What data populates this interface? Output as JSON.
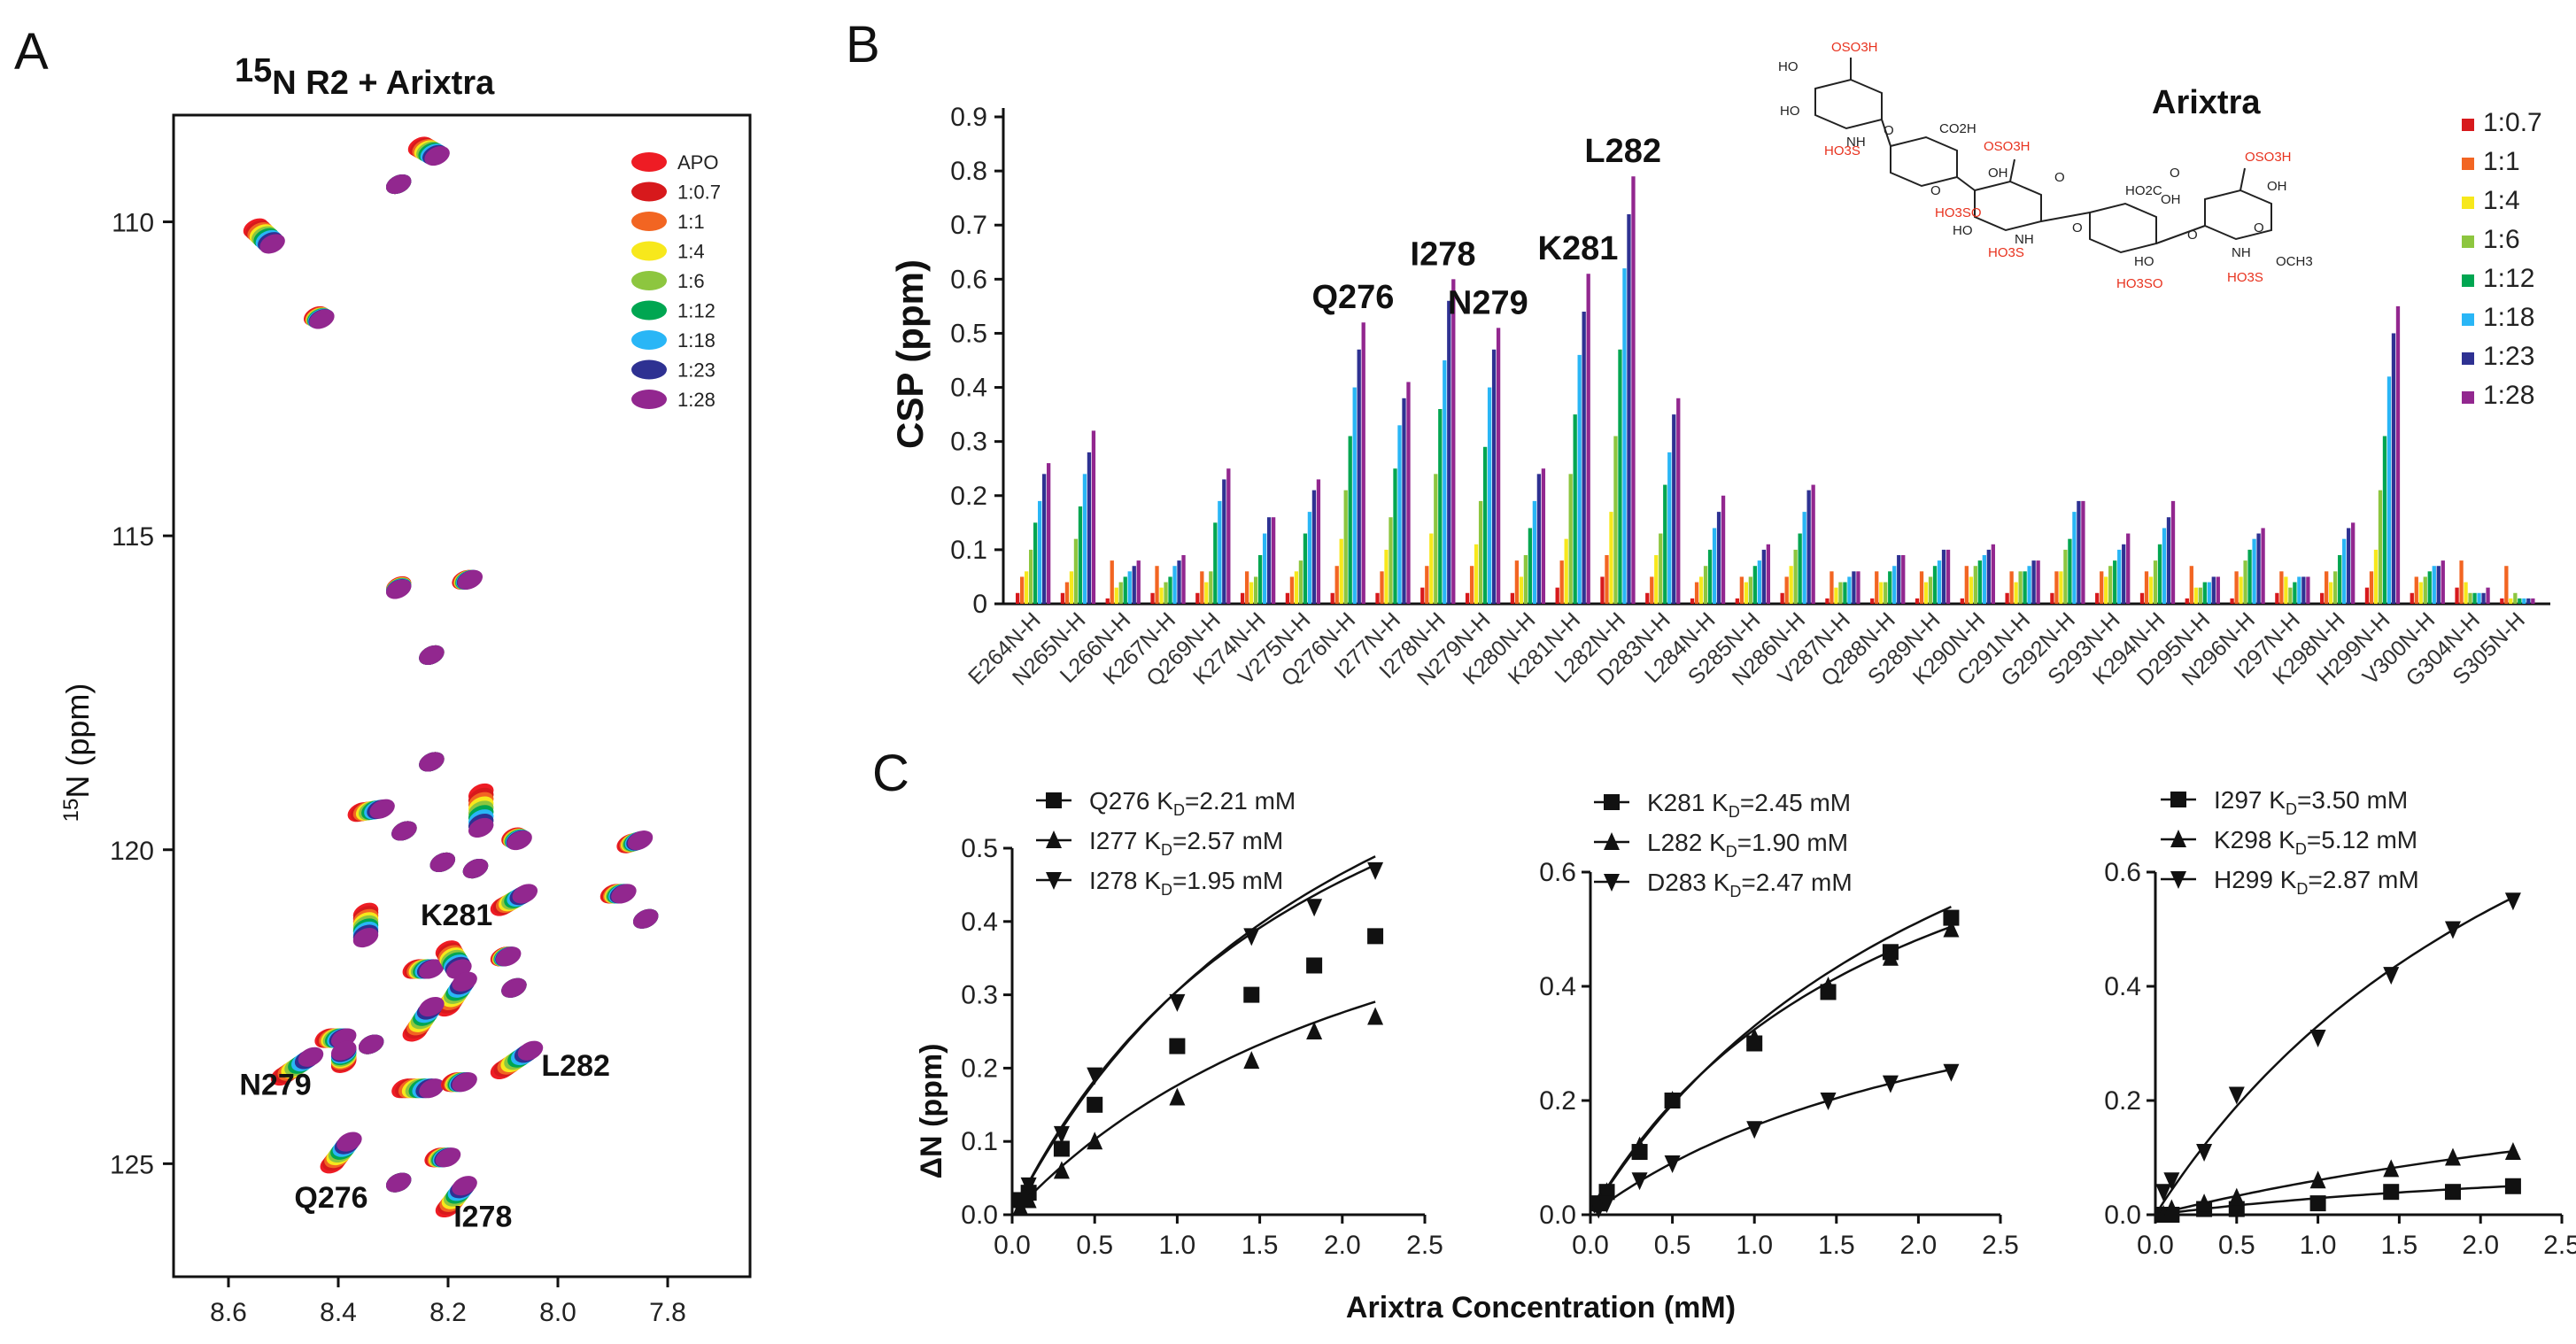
{
  "panels": {
    "A": "A",
    "B": "B",
    "C": "C"
  },
  "colors": {
    "apo": "#ee1c24",
    "r0_7": "#d7191c",
    "r1": "#f26522",
    "r4": "#f7e81c",
    "r6": "#8dc63f",
    "r12": "#00a651",
    "r18": "#29b6f6",
    "r23": "#2e3192",
    "r28": "#92278f"
  },
  "chart_data": [
    {
      "type": "scatter",
      "id": "A",
      "title": "15N R2 + Arixtra",
      "title_sup": "15",
      "title_rest": "N R2 + Arixtra",
      "xlabel": "",
      "ylabel": "15N (ppm)",
      "ylabel_sup": "15",
      "ylabel_rest": "N (ppm)",
      "xlim": [
        8.7,
        7.65
      ],
      "ylim": [
        108.3,
        126.8
      ],
      "xticks": [
        "8.6",
        "8.4",
        "8.2",
        "8.0",
        "7.8"
      ],
      "yticks": [
        "110",
        "115",
        "120",
        "125"
      ],
      "legend": [
        "APO",
        "1:0.7",
        "1:1",
        "1:4",
        "1:6",
        "1:12",
        "1:18",
        "1:23",
        "1:28"
      ],
      "annotations": [
        {
          "label": "K281",
          "x": 8.25,
          "y": 121.2
        },
        {
          "label": "N279",
          "x": 8.58,
          "y": 123.9
        },
        {
          "label": "L282",
          "x": 8.03,
          "y": 123.6
        },
        {
          "label": "Q276",
          "x": 8.48,
          "y": 125.7
        },
        {
          "label": "I278",
          "x": 8.19,
          "y": 126.0
        }
      ],
      "peaks": [
        {
          "x": 8.25,
          "y": 108.8,
          "dx": -0.03,
          "dy": 0.15
        },
        {
          "x": 8.55,
          "y": 110.1,
          "dx": -0.03,
          "dy": 0.25
        },
        {
          "x": 8.29,
          "y": 109.4,
          "dx": 0,
          "dy": 0
        },
        {
          "x": 8.44,
          "y": 111.5,
          "dx": -0.01,
          "dy": 0.05
        },
        {
          "x": 8.29,
          "y": 115.8,
          "dx": 0,
          "dy": 0.05
        },
        {
          "x": 8.17,
          "y": 115.7,
          "dx": -0.01,
          "dy": 0
        },
        {
          "x": 8.23,
          "y": 116.9,
          "dx": 0,
          "dy": 0
        },
        {
          "x": 8.23,
          "y": 118.6,
          "dx": 0,
          "dy": 0
        },
        {
          "x": 8.36,
          "y": 119.4,
          "dx": -0.04,
          "dy": -0.05
        },
        {
          "x": 8.14,
          "y": 119.1,
          "dx": 0,
          "dy": 0.55
        },
        {
          "x": 8.28,
          "y": 119.7,
          "dx": 0,
          "dy": 0
        },
        {
          "x": 8.08,
          "y": 119.8,
          "dx": -0.01,
          "dy": 0.05
        },
        {
          "x": 7.87,
          "y": 119.9,
          "dx": -0.02,
          "dy": -0.05
        },
        {
          "x": 8.21,
          "y": 120.2,
          "dx": 0,
          "dy": 0
        },
        {
          "x": 8.15,
          "y": 120.3,
          "dx": 0,
          "dy": 0
        },
        {
          "x": 8.35,
          "y": 121.0,
          "dx": 0,
          "dy": 0.4
        },
        {
          "x": 8.1,
          "y": 120.9,
          "dx": -0.04,
          "dy": -0.2
        },
        {
          "x": 7.9,
          "y": 120.7,
          "dx": -0.02,
          "dy": 0
        },
        {
          "x": 7.84,
          "y": 121.1,
          "dx": 0,
          "dy": 0
        },
        {
          "x": 8.26,
          "y": 121.9,
          "dx": -0.03,
          "dy": 0
        },
        {
          "x": 8.2,
          "y": 121.6,
          "dx": -0.02,
          "dy": 0.3
        },
        {
          "x": 8.1,
          "y": 121.7,
          "dx": -0.01,
          "dy": 0
        },
        {
          "x": 8.2,
          "y": 122.5,
          "dx": -0.03,
          "dy": -0.4
        },
        {
          "x": 8.08,
          "y": 122.2,
          "dx": 0,
          "dy": 0
        },
        {
          "x": 8.26,
          "y": 122.9,
          "dx": -0.03,
          "dy": -0.4
        },
        {
          "x": 8.42,
          "y": 123.0,
          "dx": -0.03,
          "dy": 0
        },
        {
          "x": 8.34,
          "y": 123.1,
          "dx": 0,
          "dy": 0
        },
        {
          "x": 8.5,
          "y": 123.6,
          "dx": -0.05,
          "dy": -0.3
        },
        {
          "x": 8.39,
          "y": 123.4,
          "dx": 0,
          "dy": -0.2
        },
        {
          "x": 8.1,
          "y": 123.5,
          "dx": -0.05,
          "dy": -0.3
        },
        {
          "x": 8.28,
          "y": 123.8,
          "dx": -0.05,
          "dy": 0
        },
        {
          "x": 8.19,
          "y": 123.7,
          "dx": -0.02,
          "dy": 0
        },
        {
          "x": 8.41,
          "y": 125.0,
          "dx": -0.03,
          "dy": -0.35
        },
        {
          "x": 8.22,
          "y": 124.9,
          "dx": -0.02,
          "dy": 0
        },
        {
          "x": 8.2,
          "y": 125.7,
          "dx": -0.03,
          "dy": -0.35
        },
        {
          "x": 8.29,
          "y": 125.3,
          "dx": 0,
          "dy": 0
        }
      ]
    },
    {
      "type": "bar",
      "id": "B",
      "title": "Arixtra",
      "xlabel": "",
      "ylabel": "CSP (ppm)",
      "ylim": [
        0,
        0.9
      ],
      "yticks": [
        "0",
        "0.1",
        "0.2",
        "0.3",
        "0.4",
        "0.5",
        "0.6",
        "0.7",
        "0.8",
        "0.9"
      ],
      "categories": [
        "E264N-H",
        "N265N-H",
        "L266N-H",
        "K267N-H",
        "Q269N-H",
        "K274N-H",
        "V275N-H",
        "Q276N-H",
        "I277N-H",
        "I278N-H",
        "N279N-H",
        "K280N-H",
        "K281N-H",
        "L282N-H",
        "D283N-H",
        "L284N-H",
        "S285N-H",
        "N286N-H",
        "V287N-H",
        "Q288N-H",
        "S289N-H",
        "K290N-H",
        "C291N-H",
        "G292N-H",
        "S293N-H",
        "K294N-H",
        "D295N-H",
        "N296N-H",
        "I297N-H",
        "K298N-H",
        "H299N-H",
        "V300N-H",
        "G304N-H",
        "S305N-H"
      ],
      "legend": [
        "1:0.7",
        "1:1",
        "1:4",
        "1:6",
        "1:12",
        "1:18",
        "1:23",
        "1:28"
      ],
      "series": [
        {
          "name": "1:0.7",
          "values": [
            0.02,
            0.02,
            0.01,
            0.02,
            0.02,
            0.02,
            0.02,
            0.02,
            0.02,
            0.03,
            0.02,
            0.02,
            0.03,
            0.05,
            0.02,
            0.01,
            0.01,
            0.02,
            0.01,
            0.01,
            0.01,
            0.01,
            0.02,
            0.02,
            0.02,
            0.02,
            0.01,
            0.01,
            0.02,
            0.02,
            0.03,
            0.02,
            0.03,
            0.01
          ]
        },
        {
          "name": "1:1",
          "values": [
            0.05,
            0.04,
            0.08,
            0.07,
            0.06,
            0.06,
            0.05,
            0.07,
            0.06,
            0.07,
            0.07,
            0.08,
            0.08,
            0.09,
            0.05,
            0.04,
            0.05,
            0.05,
            0.06,
            0.06,
            0.06,
            0.07,
            0.06,
            0.06,
            0.06,
            0.06,
            0.07,
            0.06,
            0.06,
            0.06,
            0.06,
            0.05,
            0.08,
            0.07
          ]
        },
        {
          "name": "1:4",
          "values": [
            0.06,
            0.06,
            0.03,
            0.03,
            0.04,
            0.04,
            0.06,
            0.12,
            0.1,
            0.13,
            0.11,
            0.05,
            0.12,
            0.17,
            0.09,
            0.05,
            0.04,
            0.07,
            0.03,
            0.04,
            0.04,
            0.05,
            0.04,
            0.06,
            0.05,
            0.05,
            0.03,
            0.05,
            0.05,
            0.04,
            0.1,
            0.04,
            0.04,
            0.01
          ]
        },
        {
          "name": "1:6",
          "values": [
            0.1,
            0.12,
            0.04,
            0.04,
            0.06,
            0.05,
            0.08,
            0.21,
            0.16,
            0.24,
            0.19,
            0.09,
            0.24,
            0.31,
            0.13,
            0.07,
            0.05,
            0.1,
            0.04,
            0.04,
            0.05,
            0.07,
            0.06,
            0.1,
            0.07,
            0.08,
            0.03,
            0.08,
            0.03,
            0.06,
            0.21,
            0.05,
            0.02,
            0.02
          ]
        },
        {
          "name": "1:12",
          "values": [
            0.15,
            0.18,
            0.05,
            0.05,
            0.15,
            0.09,
            0.13,
            0.31,
            0.25,
            0.36,
            0.29,
            0.14,
            0.35,
            0.47,
            0.22,
            0.1,
            0.07,
            0.13,
            0.04,
            0.06,
            0.07,
            0.08,
            0.06,
            0.12,
            0.08,
            0.11,
            0.04,
            0.1,
            0.04,
            0.09,
            0.31,
            0.06,
            0.02,
            0.01
          ]
        },
        {
          "name": "1:18",
          "values": [
            0.19,
            0.24,
            0.06,
            0.07,
            0.19,
            0.13,
            0.17,
            0.4,
            0.33,
            0.45,
            0.4,
            0.19,
            0.46,
            0.62,
            0.28,
            0.14,
            0.08,
            0.17,
            0.05,
            0.07,
            0.08,
            0.09,
            0.07,
            0.17,
            0.1,
            0.14,
            0.04,
            0.12,
            0.05,
            0.12,
            0.42,
            0.07,
            0.02,
            0.01
          ]
        },
        {
          "name": "1:23",
          "values": [
            0.24,
            0.28,
            0.07,
            0.08,
            0.23,
            0.16,
            0.21,
            0.47,
            0.38,
            0.56,
            0.47,
            0.24,
            0.54,
            0.72,
            0.35,
            0.17,
            0.1,
            0.21,
            0.06,
            0.09,
            0.1,
            0.1,
            0.08,
            0.19,
            0.11,
            0.16,
            0.05,
            0.13,
            0.05,
            0.14,
            0.5,
            0.07,
            0.02,
            0.01
          ]
        },
        {
          "name": "1:28",
          "values": [
            0.26,
            0.32,
            0.08,
            0.09,
            0.25,
            0.16,
            0.23,
            0.52,
            0.41,
            0.6,
            0.51,
            0.25,
            0.61,
            0.79,
            0.38,
            0.2,
            0.11,
            0.22,
            0.06,
            0.09,
            0.1,
            0.11,
            0.08,
            0.19,
            0.13,
            0.19,
            0.05,
            0.14,
            0.05,
            0.15,
            0.55,
            0.08,
            0.03,
            0.01
          ]
        }
      ],
      "annotations": [
        {
          "label": "Q276",
          "category": "Q276N-H",
          "value": 0.52
        },
        {
          "label": "I278",
          "category": "I278N-H",
          "value": 0.6
        },
        {
          "label": "N279",
          "category": "N279N-H",
          "value": 0.51
        },
        {
          "label": "K281",
          "category": "K281N-H",
          "value": 0.61
        },
        {
          "label": "L282",
          "category": "L282N-H",
          "value": 0.79
        }
      ]
    },
    {
      "type": "line",
      "id": "C1",
      "xlabel": "",
      "ylabel": "ΔN (ppm)",
      "xlim": [
        0,
        2.5
      ],
      "ylim": [
        0,
        0.5
      ],
      "xticks": [
        "0.0",
        "0.5",
        "1.0",
        "1.5",
        "2.0",
        "2.5"
      ],
      "yticks": [
        "0.0",
        "0.1",
        "0.2",
        "0.3",
        "0.4",
        "0.5"
      ],
      "x": [
        0.05,
        0.1,
        0.3,
        0.5,
        1.0,
        1.45,
        1.83,
        2.2
      ],
      "series": [
        {
          "name": "Q276",
          "kd": "2.21 mM",
          "marker": "square",
          "values": [
            0.02,
            0.03,
            0.09,
            0.15,
            0.23,
            0.3,
            0.34,
            0.38
          ],
          "bmax": 0.98,
          "kdval": 2.21
        },
        {
          "name": "I277",
          "kd": "2.57 mM",
          "marker": "triangle-up",
          "values": [
            0.01,
            0.02,
            0.06,
            0.1,
            0.16,
            0.21,
            0.25,
            0.27
          ],
          "bmax": 0.63,
          "kdval": 2.57
        },
        {
          "name": "I278",
          "kd": "1.95 mM",
          "marker": "triangle-down",
          "values": [
            0.02,
            0.04,
            0.11,
            0.19,
            0.29,
            0.38,
            0.42,
            0.47
          ],
          "bmax": 0.9,
          "kdval": 1.95
        }
      ]
    },
    {
      "type": "line",
      "id": "C2",
      "xlabel": "Arixtra Concentration (mM)",
      "ylabel": "",
      "xlim": [
        0,
        2.5
      ],
      "ylim": [
        0,
        0.6
      ],
      "xticks": [
        "0.0",
        "0.5",
        "1.0",
        "1.5",
        "2.0",
        "2.5"
      ],
      "yticks": [
        "0.0",
        "0.2",
        "0.4",
        "0.6"
      ],
      "x": [
        0.05,
        0.1,
        0.3,
        0.5,
        1.0,
        1.45,
        1.83,
        2.2
      ],
      "series": [
        {
          "name": "K281",
          "kd": "2.45 mM",
          "marker": "square",
          "values": [
            0.02,
            0.04,
            0.11,
            0.2,
            0.3,
            0.39,
            0.46,
            0.52
          ],
          "bmax": 1.14,
          "kdval": 2.45
        },
        {
          "name": "L282",
          "kd": "1.90 mM",
          "marker": "triangle-up",
          "values": [
            0.02,
            0.04,
            0.12,
            0.2,
            0.31,
            0.4,
            0.45,
            0.5
          ],
          "bmax": 0.94,
          "kdval": 1.9
        },
        {
          "name": "D283",
          "kd": "2.47 mM",
          "marker": "triangle-down",
          "values": [
            0.01,
            0.02,
            0.06,
            0.09,
            0.15,
            0.2,
            0.23,
            0.25
          ],
          "bmax": 0.54,
          "kdval": 2.47
        }
      ]
    },
    {
      "type": "line",
      "id": "C3",
      "xlabel": "",
      "ylabel": "",
      "xlim": [
        0,
        2.5
      ],
      "ylim": [
        0,
        0.6
      ],
      "xticks": [
        "0.0",
        "0.5",
        "1.0",
        "1.5",
        "2.0",
        "2.5"
      ],
      "yticks": [
        "0.0",
        "0.2",
        "0.4",
        "0.6"
      ],
      "x": [
        0.05,
        0.1,
        0.3,
        0.5,
        1.0,
        1.45,
        1.83,
        2.2
      ],
      "series": [
        {
          "name": "I297",
          "kd": "3.50 mM",
          "marker": "square",
          "values": [
            0.0,
            0.0,
            0.01,
            0.01,
            0.02,
            0.04,
            0.04,
            0.05
          ],
          "bmax": 0.13,
          "kdval": 3.5
        },
        {
          "name": "K298",
          "kd": "5.12 mM",
          "marker": "triangle-up",
          "values": [
            0.0,
            0.01,
            0.02,
            0.03,
            0.06,
            0.08,
            0.1,
            0.11
          ],
          "bmax": 0.37,
          "kdval": 5.12
        },
        {
          "name": "H299",
          "kd": "2.87 mM",
          "marker": "triangle-down",
          "values": [
            0.04,
            0.06,
            0.11,
            0.21,
            0.31,
            0.42,
            0.5,
            0.55
          ],
          "bmax": 1.28,
          "kdval": 2.87
        }
      ]
    }
  ],
  "kd_prefix": "K",
  "kd_sub": "D",
  "kd_eq": "=",
  "chem": {
    "labels_black": [
      "HO",
      "HO",
      "O",
      "NH",
      "CO2H",
      "O",
      "OH",
      "HO",
      "O",
      "O",
      "NH",
      "HO2C",
      "OH",
      "O",
      "O",
      "NH",
      "OCH3",
      "OH",
      "O",
      "HO"
    ],
    "labels_red": [
      "OSO3H",
      "HO3S",
      "OSO3H",
      "HO3SO",
      "HO3S",
      "HO3SO",
      "OSO3H",
      "HO3S"
    ]
  }
}
